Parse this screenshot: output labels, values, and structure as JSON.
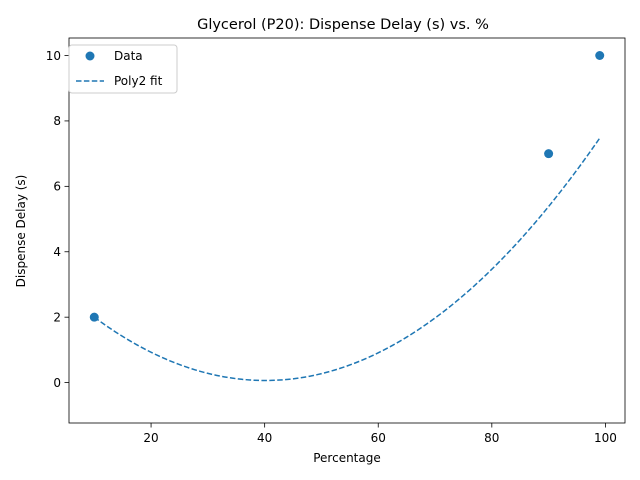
{
  "chart_data": {
    "type": "scatter",
    "title": "Glycerol (P20): Dispense Delay (s) vs. %",
    "xlabel": "Percentage",
    "ylabel": "Dispense Delay (s)",
    "xlim": [
      5.55,
      103.45
    ],
    "ylim": [
      -1.235,
      10.535
    ],
    "xticks": [
      20,
      40,
      60,
      80,
      100
    ],
    "yticks": [
      0,
      2,
      4,
      6,
      8,
      10
    ],
    "grid": false,
    "legend_position": "upper-left",
    "series": [
      {
        "name": "Data",
        "kind": "scatter",
        "color": "#1f77b4",
        "x": [
          10,
          90,
          99
        ],
        "y": [
          2,
          7,
          10
        ]
      },
      {
        "name": "Poly2 fit",
        "kind": "line",
        "style": "dashed",
        "color": "#1f77b4",
        "coefficients": {
          "a": 0.0021363,
          "b": -0.171335,
          "c": 3.49972
        },
        "x_range": [
          10,
          99
        ]
      }
    ]
  }
}
